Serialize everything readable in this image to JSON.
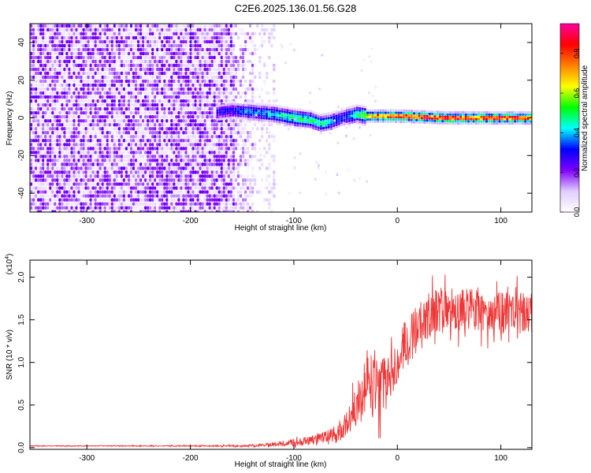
{
  "title": "C2E6.2025.136.01.56.G28",
  "chart_data": [
    {
      "type": "heatmap",
      "xlabel": "Height of straight line (km)",
      "ylabel": "Frequency (Hz)",
      "xlim": [
        -355,
        130
      ],
      "ylim": [
        -50,
        50
      ],
      "xticks": [
        -300,
        -200,
        -100,
        0,
        100
      ],
      "yticks": [
        -40,
        -20,
        0,
        20,
        40
      ],
      "colorbar": {
        "label": "Normalized spectral amplitude",
        "range": [
          0.0,
          0.95
        ],
        "ticks": [
          0.0,
          0.2,
          0.4,
          0.6,
          0.8
        ],
        "tick_labels": [
          "0.0",
          "0.2",
          "0.4",
          "0.6",
          "0.8"
        ],
        "colormap": [
          "#ffffff",
          "#e0ccff",
          "#7f00ff",
          "#0000ff",
          "#00ffff",
          "#00ff00",
          "#ffff00",
          "#ff8000",
          "#ff0000",
          "#ff00a0"
        ]
      },
      "noise_region_x": [
        -355,
        -140
      ],
      "signal_trace": {
        "x": [
          -175,
          -160,
          -140,
          -120,
          -100,
          -85,
          -75,
          -65,
          -55,
          -48,
          -40,
          -30,
          -20,
          0,
          50,
          100,
          130
        ],
        "frequency": [
          3,
          4,
          3,
          2,
          0,
          -1,
          -3,
          -2,
          0,
          1,
          2,
          1,
          1,
          1,
          0,
          0,
          0
        ],
        "amplitude": [
          0.3,
          0.35,
          0.4,
          0.45,
          0.55,
          0.5,
          0.5,
          0.45,
          0.35,
          0.45,
          0.5,
          0.7,
          0.85,
          0.9,
          0.9,
          0.9,
          0.9
        ]
      }
    },
    {
      "type": "line",
      "xlabel": "Height of straight line (km)",
      "ylabel": "SNR (10 * v/v)",
      "y_multiplier_label": "(x10",
      "y_multiplier_exp": "4",
      "xlim": [
        -355,
        130
      ],
      "ylim": [
        -0.02,
        2.2
      ],
      "xticks": [
        -300,
        -200,
        -100,
        0,
        100
      ],
      "yticks": [
        0.0,
        0.5,
        1.0,
        1.5,
        2.0
      ],
      "ytick_labels": [
        "0.0",
        "0.5",
        "1.0",
        "1.5",
        "2.0"
      ],
      "color": "#ef3535",
      "series": [
        {
          "x": [
            -355,
            -300,
            -200,
            -150,
            -130,
            -110,
            -100,
            -90,
            -80,
            -70,
            -60,
            -50,
            -45,
            -40,
            -35,
            -30,
            -25,
            -20,
            -15,
            -10,
            -5,
            0,
            10,
            20,
            30,
            40,
            60,
            80,
            100,
            120,
            130
          ],
          "y": [
            0.02,
            0.02,
            0.02,
            0.02,
            0.03,
            0.05,
            0.06,
            0.08,
            0.09,
            0.11,
            0.15,
            0.25,
            0.35,
            0.45,
            0.6,
            0.8,
            0.75,
            0.7,
            0.72,
            0.75,
            0.9,
            1.05,
            1.25,
            1.4,
            1.55,
            1.6,
            1.62,
            1.6,
            1.58,
            1.58,
            1.6
          ],
          "spread": [
            0.005,
            0.005,
            0.007,
            0.01,
            0.02,
            0.03,
            0.04,
            0.05,
            0.06,
            0.08,
            0.1,
            0.15,
            0.2,
            0.25,
            0.3,
            0.35,
            0.4,
            0.35,
            0.35,
            0.3,
            0.3,
            0.3,
            0.3,
            0.3,
            0.28,
            0.28,
            0.25,
            0.25,
            0.25,
            0.25,
            0.25
          ]
        }
      ]
    }
  ]
}
